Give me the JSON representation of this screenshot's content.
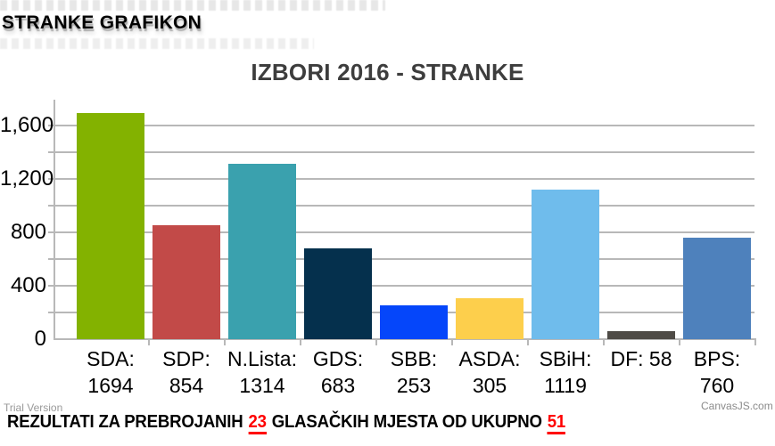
{
  "header": {
    "title": "STRANKE GRAFIKON"
  },
  "watermarks": {
    "trial": "Trial Version",
    "credits": "CanvasJS.com"
  },
  "footer": {
    "prefix": "REZULTATI ZA PREBROJANIH ",
    "counted": "23",
    "middle": " GLASAČKIH MJESTA OD UKUPNO ",
    "total": "51"
  },
  "chart_data": {
    "type": "bar",
    "title": "IZBORI 2016 - STRANKE",
    "categories": [
      "SDA",
      "SDP",
      "N.Lista",
      "GDS",
      "SBB",
      "ASDA",
      "SBiH",
      "DF",
      "BPS"
    ],
    "values": [
      1694,
      854,
      1314,
      683,
      253,
      305,
      1119,
      58,
      760
    ],
    "colors": [
      "#83b200",
      "#c24a48",
      "#3aa1ae",
      "#05304d",
      "#0546fa",
      "#fdcf4c",
      "#6fbcec",
      "#4e4b46",
      "#4e81bc"
    ],
    "tick_labels": [
      "SDA: 1694",
      "SDP: 854",
      "N.Lista: 1314",
      "GDS: 683",
      "SBB: 253",
      "ASDA: 305",
      "SBiH: 1119",
      "DF: 58",
      "BPS: 760"
    ],
    "ylabel_ticks": [
      {
        "value": 0,
        "label": "0"
      },
      {
        "value": 400,
        "label": "400"
      },
      {
        "value": 800,
        "label": "800"
      },
      {
        "value": 1200,
        "label": "1,200"
      },
      {
        "value": 1600,
        "label": "1,600"
      }
    ],
    "ylim": [
      0,
      1600
    ],
    "grid_interval": 200,
    "grid": true,
    "legend": "none",
    "xlabel": "",
    "ylabel": ""
  }
}
